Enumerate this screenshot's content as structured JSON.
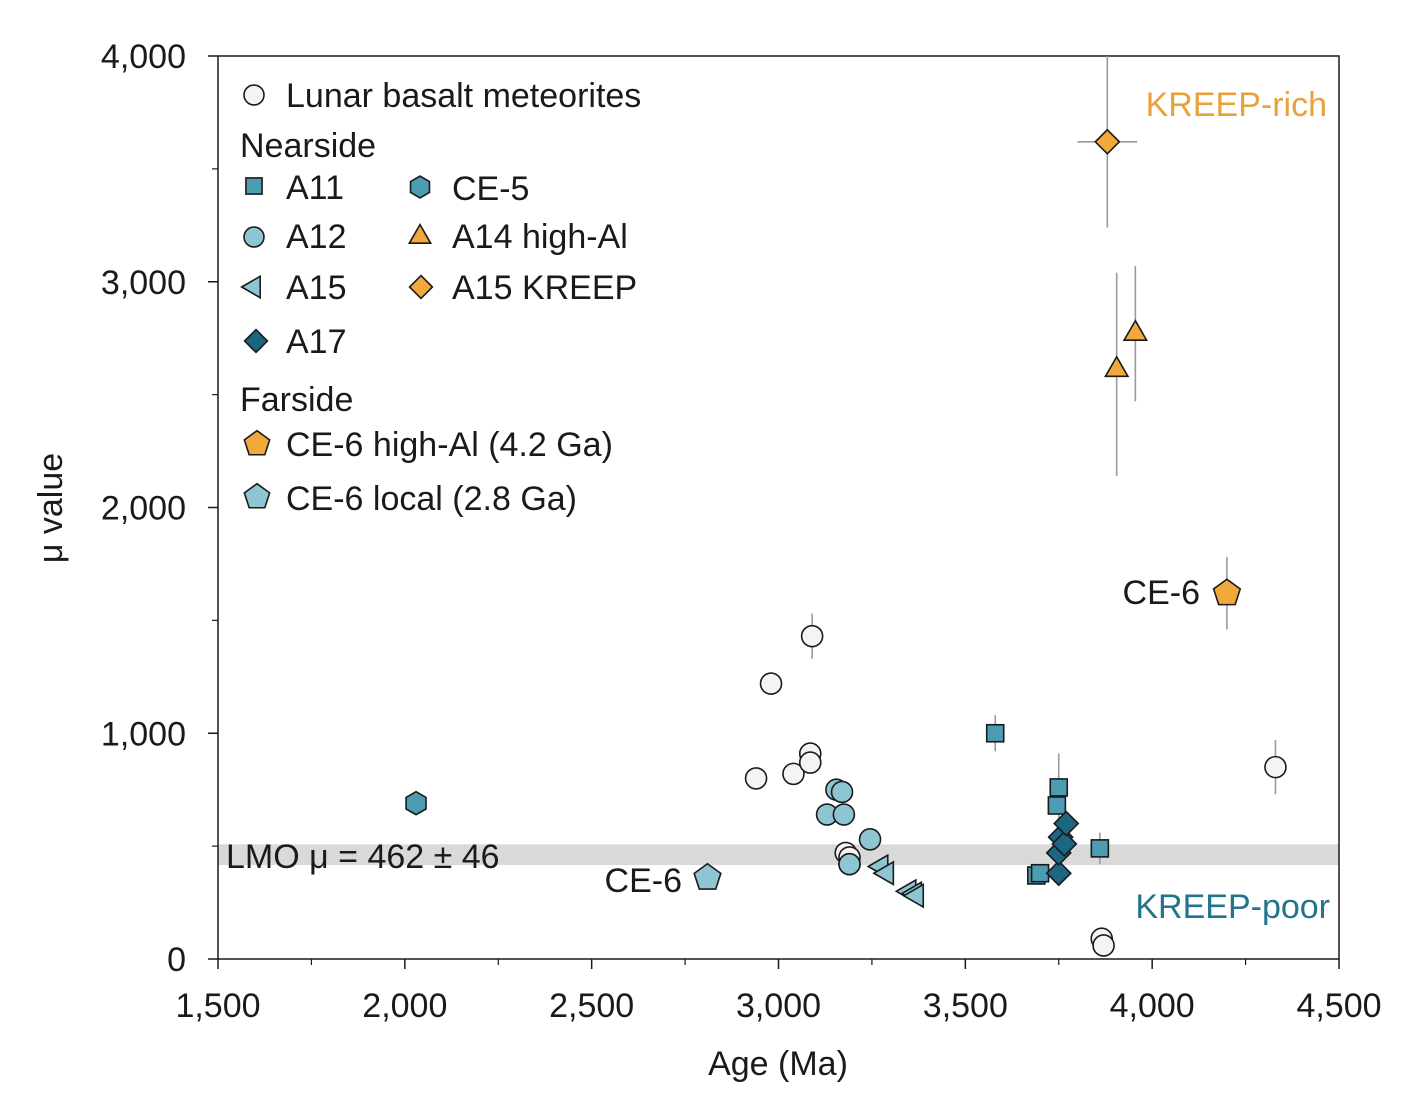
{
  "chart_data": {
    "type": "scatter",
    "xlabel": "Age (Ma)",
    "ylabel": "μ value",
    "xlim": [
      1500,
      4500
    ],
    "ylim": [
      0,
      4000
    ],
    "xticks": [
      1500,
      2000,
      2500,
      3000,
      3500,
      4000,
      4500
    ],
    "xtick_labels": [
      "1,500",
      "2,000",
      "2,500",
      "3,000",
      "3,500",
      "4,000",
      "4,500"
    ],
    "yticks": [
      0,
      1000,
      2000,
      3000,
      4000
    ],
    "ytick_labels": [
      "0",
      "1,000",
      "2,000",
      "3,000",
      "4,000"
    ],
    "grid": false,
    "legend_placement": "top-left",
    "legend": {
      "meteorites": "Lunar basalt meteorites",
      "nearside_heading": "Nearside",
      "farside_heading": "Farside"
    },
    "lmo_band": {
      "label": "LMO μ = 462 ± 46",
      "center": 462,
      "half_width": 46
    },
    "annotations": {
      "kreep_rich": "KREEP-rich",
      "kreep_poor": "KREEP-poor",
      "ce6_local": "CE-6",
      "ce6_highal": "CE-6"
    },
    "colors": {
      "orange": "#f2a93b",
      "light_blue": "#8ec5d3",
      "mid_blue": "#4c9db3",
      "dark_blue": "#1b6680",
      "open_fill": "#f4f4f4",
      "band": "#d9d9d9",
      "kreep_rich_text": "#e8a23c",
      "kreep_poor_text": "#23748c"
    },
    "series": [
      {
        "name": "Lunar basalt meteorites",
        "group": "meteorite",
        "marker": "circle",
        "color": "#f4f4f4",
        "points": [
          {
            "x": 2940,
            "y": 800
          },
          {
            "x": 2980,
            "y": 1220
          },
          {
            "x": 3040,
            "y": 820
          },
          {
            "x": 3085,
            "y": 910
          },
          {
            "x": 3085,
            "y": 870
          },
          {
            "x": 3090,
            "y": 1430,
            "yerr": 100
          },
          {
            "x": 3180,
            "y": 470
          },
          {
            "x": 3190,
            "y": 450
          },
          {
            "x": 3190,
            "y": 420
          },
          {
            "x": 3865,
            "y": 90
          },
          {
            "x": 3870,
            "y": 60
          },
          {
            "x": 4330,
            "y": 850,
            "yerr": 120
          }
        ]
      },
      {
        "name": "A11",
        "group": "nearside",
        "marker": "square",
        "color": "#4c9db3",
        "points": [
          {
            "x": 3580,
            "y": 1000,
            "yerr": 80
          },
          {
            "x": 3690,
            "y": 370
          },
          {
            "x": 3700,
            "y": 380
          },
          {
            "x": 3745,
            "y": 680
          },
          {
            "x": 3750,
            "y": 760,
            "yerr": 150
          },
          {
            "x": 3860,
            "y": 490,
            "yerr": 70
          }
        ]
      },
      {
        "name": "A12",
        "group": "nearside",
        "marker": "circle",
        "color": "#8ec5d3",
        "points": [
          {
            "x": 3130,
            "y": 640
          },
          {
            "x": 3155,
            "y": 750
          },
          {
            "x": 3170,
            "y": 740
          },
          {
            "x": 3175,
            "y": 640
          },
          {
            "x": 3190,
            "y": 420
          },
          {
            "x": 3245,
            "y": 530
          }
        ]
      },
      {
        "name": "A15",
        "group": "nearside",
        "marker": "triangle-left",
        "color": "#8ec5d3",
        "points": [
          {
            "x": 3275,
            "y": 410
          },
          {
            "x": 3290,
            "y": 380
          },
          {
            "x": 3350,
            "y": 300
          },
          {
            "x": 3365,
            "y": 290
          },
          {
            "x": 3370,
            "y": 280
          }
        ]
      },
      {
        "name": "A17",
        "group": "nearside",
        "marker": "diamond",
        "color": "#1b6680",
        "points": [
          {
            "x": 3750,
            "y": 380
          },
          {
            "x": 3750,
            "y": 470
          },
          {
            "x": 3755,
            "y": 540
          },
          {
            "x": 3765,
            "y": 510
          },
          {
            "x": 3770,
            "y": 600
          }
        ]
      },
      {
        "name": "CE-5",
        "group": "nearside",
        "marker": "hexagon",
        "color": "#4c9db3",
        "points": [
          {
            "x": 2030,
            "y": 690
          }
        ]
      },
      {
        "name": "A14 high-Al",
        "group": "nearside",
        "marker": "triangle-up",
        "color": "#f2a93b",
        "points": [
          {
            "x": 3905,
            "y": 2610,
            "yerr_up": 430,
            "yerr_down": 470
          },
          {
            "x": 3955,
            "y": 2770,
            "yerr": 300
          }
        ]
      },
      {
        "name": "A15 KREEP",
        "group": "nearside",
        "marker": "diamond",
        "color": "#f2a93b",
        "points": [
          {
            "x": 3880,
            "y": 3620,
            "yerr": 380,
            "xerr": 80
          }
        ]
      },
      {
        "name": "CE-6 high-Al (4.2 Ga)",
        "group": "farside",
        "marker": "pentagon",
        "color": "#f2a93b",
        "points": [
          {
            "x": 4200,
            "y": 1620,
            "yerr": 160
          }
        ]
      },
      {
        "name": "CE-6 local (2.8 Ga)",
        "group": "farside",
        "marker": "pentagon",
        "color": "#8ec5d3",
        "points": [
          {
            "x": 2810,
            "y": 360
          }
        ]
      }
    ]
  }
}
